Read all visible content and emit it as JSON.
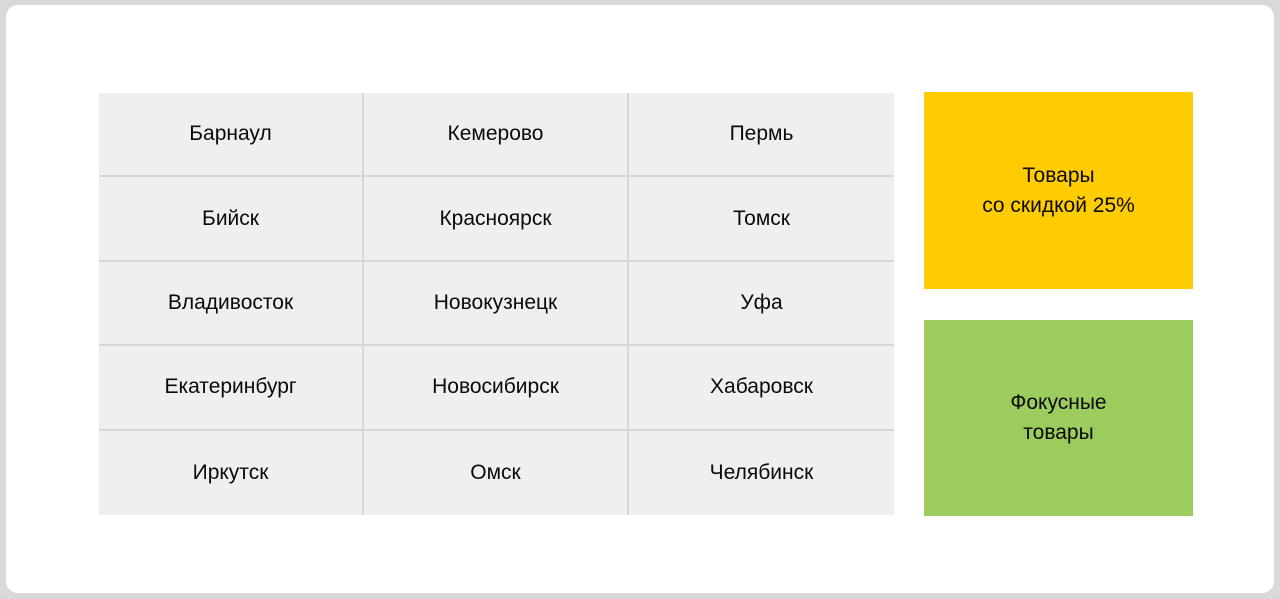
{
  "page": {
    "background_color": "#d9d9d9",
    "card_color": "#ffffff"
  },
  "city_grid": {
    "rows": [
      [
        "Барнаул",
        "Кемерово",
        "Пермь"
      ],
      [
        "Бийск",
        "Красноярск",
        "Томск"
      ],
      [
        "Владивосток",
        "Новокузнецк",
        "Уфа"
      ],
      [
        "Екатеринбург",
        "Новосибирск",
        "Хабаровск"
      ],
      [
        "Иркутск",
        "Омск",
        "Челябинск"
      ]
    ],
    "cell_background": "#efefef",
    "cell_border_color": "#d7d7d7",
    "text_color": "#0a0a0a"
  },
  "promo_buttons": {
    "discount": {
      "label": "Товары\nсо скидкой 25%",
      "background_color": "#fecc00"
    },
    "focus": {
      "label": "Фокусные\nтовары",
      "background_color": "#9ccb5e"
    }
  }
}
